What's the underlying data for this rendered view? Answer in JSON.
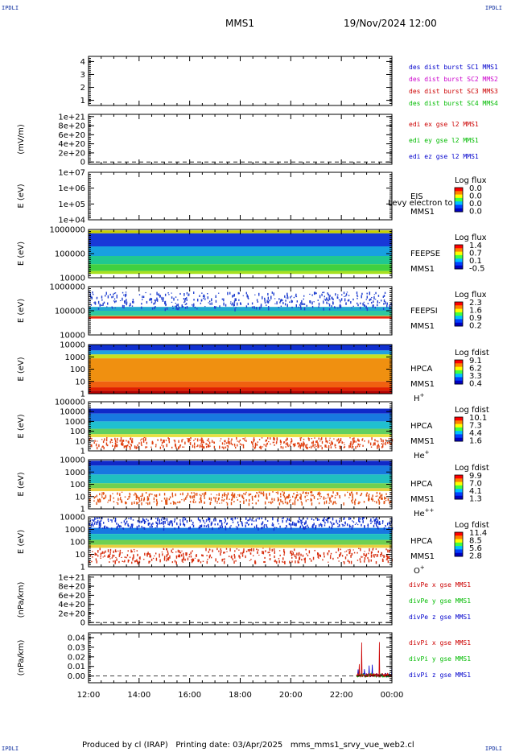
{
  "header": {
    "corner_label": "IPDLI",
    "spacecraft": "MMS1",
    "datetime": "19/Nov/2024 12:00"
  },
  "footer": {
    "produced_by": "Produced by cl (IRAP)",
    "printing_date": "Printing date: 03/Apr/2025",
    "file": "mms_mms1_srvy_vue_web2.cl"
  },
  "x_axis": {
    "tick_labels": [
      "12:00",
      "14:00",
      "16:00",
      "18:00",
      "20:00",
      "22:00",
      "00:00"
    ]
  },
  "chart_data": [
    {
      "type": "line",
      "id": "des-burst",
      "ylabel": "",
      "yticks": [
        "1",
        "2",
        "3",
        "4"
      ],
      "ylim": [
        0.6,
        4.4
      ],
      "legend": [
        {
          "name": "des dist burst SC1 MMS1",
          "color": "#0000cc"
        },
        {
          "name": "des dist burst SC2 MMS2",
          "color": "#cc00cc"
        },
        {
          "name": "des dist burst SC3 MMS3",
          "color": "#cc0000"
        },
        {
          "name": "des dist burst SC4 MMS4",
          "color": "#00bb00"
        }
      ]
    },
    {
      "type": "line",
      "id": "edi-e",
      "ylabel": "(mV/m)",
      "yticks": [
        "0",
        "2e+20",
        "4e+20",
        "6e+20",
        "8e+20",
        "1e+21"
      ],
      "ylim": [
        -5e+19,
        1.05e+21
      ],
      "zero_line": true,
      "legend": [
        {
          "name": "edi ex gse l2 MMS1",
          "color": "#cc0000"
        },
        {
          "name": "edi ey gse l2 MMS1",
          "color": "#00bb00"
        },
        {
          "name": "edi ez gse l2 MMS1",
          "color": "#0000cc"
        }
      ]
    },
    {
      "type": "heatmap",
      "id": "eis",
      "ylabel": "E (eV)",
      "yticks": [
        "1e+04",
        "1e+05",
        "1e+06",
        "1e+07"
      ],
      "log": true,
      "instrument": [
        "EIS",
        "MMS1"
      ],
      "overlay_text": "Levy electron to",
      "colorbar": {
        "title": "Log flux",
        "ticks": [
          "0.0",
          "0.0",
          "0.0",
          "0.0"
        ]
      },
      "empty": true
    },
    {
      "type": "heatmap",
      "id": "feepse",
      "ylabel": "E (eV)",
      "yticks": [
        "10000",
        "100000",
        "1000000"
      ],
      "log": true,
      "instrument": [
        "FEEPSE",
        "MMS1"
      ],
      "colorbar": {
        "title": "Log flux",
        "ticks": [
          "1.4",
          "0.7",
          "0.1",
          "-0.5"
        ]
      },
      "bands": [
        {
          "from": 0.02,
          "to": 0.08,
          "color": "#c8d000"
        },
        {
          "from": 0.08,
          "to": 0.35,
          "color": "#1838d8"
        },
        {
          "from": 0.35,
          "to": 0.55,
          "color": "#18a0e0"
        },
        {
          "from": 0.55,
          "to": 0.72,
          "color": "#20c890"
        },
        {
          "from": 0.72,
          "to": 0.86,
          "color": "#40d040"
        },
        {
          "from": 0.86,
          "to": 0.92,
          "color": "#a8e020"
        }
      ]
    },
    {
      "type": "heatmap",
      "id": "feepsi",
      "ylabel": "E (eV)",
      "yticks": [
        "10000",
        "100000",
        "1000000"
      ],
      "log": true,
      "instrument": [
        "FEEPSI",
        "MMS1"
      ],
      "colorbar": {
        "title": "Log flux",
        "ticks": [
          "2.3",
          "1.6",
          "0.9",
          "0.2"
        ]
      },
      "bands": [
        {
          "from": 0.6,
          "to": 0.62,
          "color": "#e0d040"
        },
        {
          "from": 0.62,
          "to": 0.64,
          "color": "#c00000"
        },
        {
          "from": 0.64,
          "to": 0.66,
          "color": "#ff2000"
        },
        {
          "from": 0.5,
          "to": 0.6,
          "color": "#30c8a0"
        },
        {
          "from": 0.42,
          "to": 0.5,
          "color": "#20a8d0"
        }
      ],
      "speckle": {
        "from": 0.1,
        "to": 0.45,
        "color": "#2040d0"
      }
    },
    {
      "type": "heatmap",
      "id": "hpca-h",
      "ylabel": "E (eV)",
      "yticks": [
        "1",
        "10",
        "100",
        "1000",
        "10000"
      ],
      "log": true,
      "instrument": [
        "HPCA",
        "MMS1",
        "H+"
      ],
      "colorbar": {
        "title": "Log fdist",
        "ticks": [
          "9.1",
          "6.2",
          "3.3",
          "0.4"
        ]
      },
      "bands": [
        {
          "from": 0.0,
          "to": 0.12,
          "color": "#1030d0"
        },
        {
          "from": 0.12,
          "to": 0.2,
          "color": "#20a0e0"
        },
        {
          "from": 0.2,
          "to": 0.28,
          "color": "#c8e020"
        },
        {
          "from": 0.28,
          "to": 0.75,
          "color": "#f09010"
        },
        {
          "from": 0.75,
          "to": 0.87,
          "color": "#f06010"
        },
        {
          "from": 0.87,
          "to": 0.94,
          "color": "#e02000"
        },
        {
          "from": 0.94,
          "to": 1.0,
          "color": "#b00000"
        }
      ]
    },
    {
      "type": "heatmap",
      "id": "hpca-he",
      "ylabel": "E (eV)",
      "yticks": [
        "1",
        "10",
        "100",
        "1000",
        "10000",
        "100000"
      ],
      "log": true,
      "instrument": [
        "HPCA",
        "MMS1",
        "He+"
      ],
      "colorbar": {
        "title": "Log fdist",
        "ticks": [
          "10.1",
          "7.3",
          "4.4",
          "1.6"
        ]
      },
      "bands": [
        {
          "from": 0.14,
          "to": 0.24,
          "color": "#1028c8"
        },
        {
          "from": 0.24,
          "to": 0.4,
          "color": "#1878e0"
        },
        {
          "from": 0.4,
          "to": 0.55,
          "color": "#20c0d0"
        },
        {
          "from": 0.55,
          "to": 0.66,
          "color": "#60d060"
        },
        {
          "from": 0.66,
          "to": 0.72,
          "color": "#e8e040"
        }
      ],
      "speckle": {
        "from": 0.72,
        "to": 0.92,
        "color": "#e04010"
      }
    },
    {
      "type": "heatmap",
      "id": "hpca-he2",
      "ylabel": "E (eV)",
      "yticks": [
        "1",
        "10",
        "100",
        "1000",
        "10000"
      ],
      "log": true,
      "instrument": [
        "HPCA",
        "MMS1",
        "He++"
      ],
      "colorbar": {
        "title": "Log fdist",
        "ticks": [
          "9.9",
          "7.0",
          "4.1",
          "1.3"
        ]
      },
      "bands": [
        {
          "from": 0.02,
          "to": 0.12,
          "color": "#1028c8"
        },
        {
          "from": 0.12,
          "to": 0.3,
          "color": "#1878e0"
        },
        {
          "from": 0.3,
          "to": 0.48,
          "color": "#20c0c0"
        },
        {
          "from": 0.48,
          "to": 0.58,
          "color": "#70d050"
        },
        {
          "from": 0.58,
          "to": 0.64,
          "color": "#e8d040"
        }
      ],
      "speckle": {
        "from": 0.64,
        "to": 0.88,
        "color": "#e05010"
      }
    },
    {
      "type": "heatmap",
      "id": "hpca-o",
      "ylabel": "E (eV)",
      "yticks": [
        "1",
        "10",
        "100",
        "1000",
        "10000"
      ],
      "log": true,
      "instrument": [
        "HPCA",
        "MMS1",
        "O+"
      ],
      "colorbar": {
        "title": "Log fdist",
        "ticks": [
          "11.4",
          "8.5",
          "5.6",
          "2.8"
        ]
      },
      "bands": [
        {
          "from": 0.22,
          "to": 0.34,
          "color": "#1878e0"
        },
        {
          "from": 0.34,
          "to": 0.46,
          "color": "#20c0c0"
        },
        {
          "from": 0.46,
          "to": 0.56,
          "color": "#70d050"
        },
        {
          "from": 0.56,
          "to": 0.62,
          "color": "#e8d040"
        }
      ],
      "speckle": {
        "from": 0.0,
        "to": 0.22,
        "color": "#1030d0"
      },
      "speckle2": {
        "from": 0.62,
        "to": 0.9,
        "color": "#d83010"
      }
    },
    {
      "type": "line",
      "id": "divpe",
      "ylabel": "(nPa/km)",
      "yticks": [
        "0",
        "2e+20",
        "4e+20",
        "6e+20",
        "8e+20",
        "1e+21"
      ],
      "ylim": [
        -5e+19,
        1.05e+21
      ],
      "zero_line": true,
      "legend": [
        {
          "name": "divPe x gse MMS1",
          "color": "#cc0000"
        },
        {
          "name": "divPe y gse MMS1",
          "color": "#00bb00"
        },
        {
          "name": "divPe z gse MMS1",
          "color": "#0000cc"
        }
      ]
    },
    {
      "type": "line",
      "id": "divpi",
      "ylabel": "(nPa/km)",
      "yticks": [
        "0.00",
        "0.01",
        "0.02",
        "0.03",
        "0.04"
      ],
      "ylim": [
        -0.007,
        0.045
      ],
      "zero_line": true,
      "data_start_hour": 22.6,
      "legend": [
        {
          "name": "divPi x gse MMS1",
          "color": "#cc0000"
        },
        {
          "name": "divPi y gse MMS1",
          "color": "#00bb00"
        },
        {
          "name": "divPi z gse MMS1",
          "color": "#0000cc"
        }
      ]
    }
  ]
}
